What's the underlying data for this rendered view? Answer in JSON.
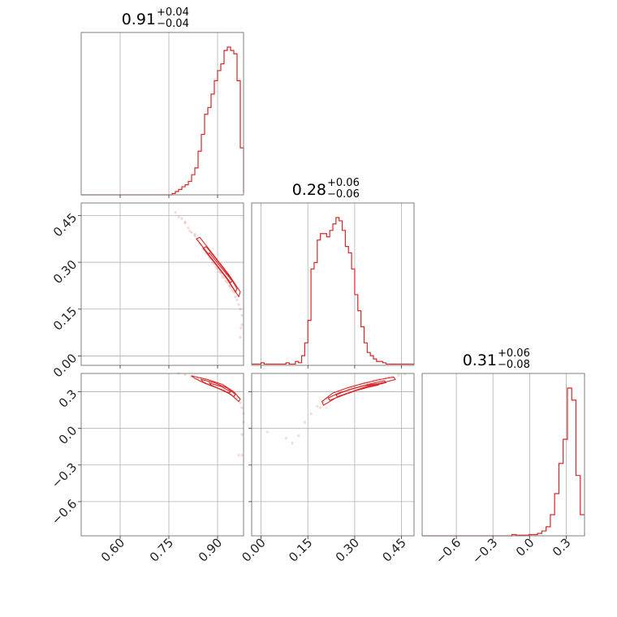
{
  "chart_data": {
    "type": "corner",
    "color": "#d62728",
    "parameters": [
      {
        "id": "p0",
        "title_value": "0.91",
        "title_upper": "+0.04",
        "title_lower": "−0.04",
        "range": [
          0.48,
          0.98
        ],
        "ticks": [
          0.6,
          0.75,
          0.9
        ],
        "tick_labels": [
          "0.60",
          "0.75",
          "0.90"
        ],
        "hist_edges_start": 0.48,
        "hist_bin_width": 0.01,
        "hist_counts": [
          0,
          0,
          0,
          0,
          0,
          0,
          0,
          0,
          0,
          0,
          0,
          0,
          0,
          0,
          0,
          0,
          0,
          0,
          0,
          0,
          0,
          0,
          0,
          0,
          0,
          0,
          0,
          0,
          0.2,
          0.5,
          0.8,
          1.2,
          1.5,
          2.0,
          3.0,
          4.0,
          6.5,
          9.0,
          12.0,
          13.0,
          15.0,
          17.0,
          18.5,
          19.5,
          21.5,
          22.0,
          21.5,
          21.0,
          17.0,
          7.0,
          0.4
        ]
      },
      {
        "id": "p1",
        "title_value": "0.28",
        "title_upper": "+0.06",
        "title_lower": "−0.06",
        "range": [
          -0.03,
          0.49
        ],
        "ticks": [
          0.0,
          0.15,
          0.3,
          0.45
        ],
        "tick_labels": [
          "0.00",
          "0.15",
          "0.30",
          "0.45"
        ],
        "hist_edges_start": -0.03,
        "hist_bin_width": 0.01,
        "hist_counts": [
          0.2,
          0.2,
          0.2,
          0.4,
          0.2,
          0.2,
          0.2,
          0.2,
          0.2,
          0.2,
          0.2,
          0.4,
          0.2,
          0.2,
          0.6,
          0.4,
          1.5,
          3.5,
          7.0,
          15.0,
          16.0,
          19.5,
          20.5,
          20.5,
          20.0,
          21.0,
          22.0,
          23.0,
          22.5,
          21.0,
          18.5,
          17.5,
          15.0,
          11.0,
          8.5,
          6.0,
          3.5,
          2.0,
          1.5,
          1.0,
          0.6,
          0.6,
          0.4,
          0.2,
          0.2,
          0.2,
          0.2,
          0.2,
          0.2,
          0.2,
          0.2,
          0.2
        ]
      },
      {
        "id": "p2",
        "title_value": "0.31",
        "title_upper": "+0.06",
        "title_lower": "−0.08",
        "range": [
          -0.88,
          0.45
        ],
        "ticks": [
          -0.6,
          -0.3,
          0.0,
          0.3
        ],
        "tick_labels": [
          "−0.6",
          "−0.3",
          "0.0",
          "0.3"
        ],
        "hist_edges_start": -0.88,
        "hist_bin_width": 0.035,
        "hist_counts": [
          0,
          0,
          0,
          0,
          0,
          0,
          0,
          0,
          0,
          0,
          0,
          0,
          0,
          0,
          0,
          0,
          0,
          0,
          0,
          0,
          0,
          0.2,
          0.1,
          0.1,
          0.1,
          0.2,
          0.2,
          0.4,
          0.8,
          1.5,
          3.5,
          7.0,
          12.0,
          16.0,
          24.5,
          22.5,
          10.0,
          3.5
        ]
      }
    ],
    "pairs": [
      {
        "x_param": 0,
        "y_param": 1,
        "samples": [
          [
            0.77,
            0.46
          ],
          [
            0.78,
            0.445
          ],
          [
            0.79,
            0.44
          ],
          [
            0.8,
            0.425
          ],
          [
            0.81,
            0.41
          ],
          [
            0.815,
            0.4
          ],
          [
            0.82,
            0.395
          ],
          [
            0.83,
            0.385
          ],
          [
            0.84,
            0.37
          ],
          [
            0.845,
            0.36
          ],
          [
            0.85,
            0.355
          ],
          [
            0.86,
            0.34
          ],
          [
            0.865,
            0.33
          ],
          [
            0.87,
            0.325
          ],
          [
            0.875,
            0.315
          ],
          [
            0.88,
            0.31
          ],
          [
            0.885,
            0.3
          ],
          [
            0.89,
            0.295
          ],
          [
            0.895,
            0.285
          ],
          [
            0.9,
            0.28
          ],
          [
            0.905,
            0.27
          ],
          [
            0.91,
            0.265
          ],
          [
            0.915,
            0.255
          ],
          [
            0.92,
            0.25
          ],
          [
            0.925,
            0.24
          ],
          [
            0.93,
            0.235
          ],
          [
            0.935,
            0.225
          ],
          [
            0.94,
            0.22
          ],
          [
            0.945,
            0.21
          ],
          [
            0.95,
            0.205
          ],
          [
            0.955,
            0.19
          ],
          [
            0.96,
            0.18
          ],
          [
            0.965,
            0.165
          ],
          [
            0.97,
            0.15
          ],
          [
            0.975,
            0.13
          ],
          [
            0.975,
            0.1
          ],
          [
            0.97,
            0.06
          ],
          [
            0.972,
            0.09
          ],
          [
            0.8,
            0.43
          ],
          [
            0.83,
            0.39
          ],
          [
            0.87,
            0.33
          ],
          [
            0.91,
            0.27
          ],
          [
            0.94,
            0.225
          ]
        ],
        "contours": [
          [
            [
              0.835,
              0.375
            ],
            [
              0.88,
              0.315
            ],
            [
              0.925,
              0.255
            ],
            [
              0.965,
              0.19
            ],
            [
              0.97,
              0.205
            ],
            [
              0.935,
              0.26
            ],
            [
              0.89,
              0.32
            ],
            [
              0.845,
              0.38
            ]
          ],
          [
            [
              0.855,
              0.345
            ],
            [
              0.89,
              0.3
            ],
            [
              0.93,
              0.245
            ],
            [
              0.955,
              0.205
            ],
            [
              0.96,
              0.215
            ],
            [
              0.94,
              0.25
            ],
            [
              0.9,
              0.305
            ],
            [
              0.865,
              0.35
            ]
          ],
          [
            [
              0.87,
              0.325
            ],
            [
              0.905,
              0.28
            ],
            [
              0.94,
              0.235
            ],
            [
              0.945,
              0.24
            ],
            [
              0.91,
              0.285
            ],
            [
              0.875,
              0.33
            ]
          ]
        ]
      },
      {
        "x_param": 0,
        "y_param": 2,
        "samples": [
          [
            0.78,
            0.45
          ],
          [
            0.8,
            0.44
          ],
          [
            0.82,
            0.425
          ],
          [
            0.84,
            0.41
          ],
          [
            0.86,
            0.395
          ],
          [
            0.875,
            0.38
          ],
          [
            0.89,
            0.365
          ],
          [
            0.905,
            0.35
          ],
          [
            0.92,
            0.33
          ],
          [
            0.935,
            0.31
          ],
          [
            0.95,
            0.28
          ],
          [
            0.96,
            0.25
          ],
          [
            0.97,
            0.21
          ],
          [
            0.975,
            0.17
          ],
          [
            0.98,
            0.12
          ],
          [
            0.98,
            0.05
          ],
          [
            0.975,
            -0.05
          ],
          [
            0.975,
            -0.22
          ],
          [
            0.965,
            -0.22
          ],
          [
            0.82,
            0.43
          ],
          [
            0.85,
            0.4
          ],
          [
            0.88,
            0.375
          ],
          [
            0.91,
            0.345
          ],
          [
            0.94,
            0.3
          ]
        ],
        "contours": [
          [
            [
              0.82,
              0.43
            ],
            [
              0.87,
              0.4
            ],
            [
              0.915,
              0.36
            ],
            [
              0.95,
              0.3
            ],
            [
              0.97,
              0.24
            ],
            [
              0.965,
              0.22
            ],
            [
              0.94,
              0.28
            ],
            [
              0.9,
              0.33
            ],
            [
              0.86,
              0.37
            ],
            [
              0.83,
              0.41
            ]
          ],
          [
            [
              0.85,
              0.4
            ],
            [
              0.89,
              0.375
            ],
            [
              0.93,
              0.33
            ],
            [
              0.955,
              0.28
            ],
            [
              0.95,
              0.26
            ],
            [
              0.92,
              0.31
            ],
            [
              0.88,
              0.35
            ],
            [
              0.855,
              0.38
            ]
          ],
          [
            [
              0.875,
              0.37
            ],
            [
              0.91,
              0.345
            ],
            [
              0.94,
              0.3
            ],
            [
              0.935,
              0.29
            ],
            [
              0.9,
              0.33
            ],
            [
              0.88,
              0.355
            ]
          ]
        ]
      },
      {
        "x_param": 1,
        "y_param": 2,
        "samples": [
          [
            0.02,
            -0.03
          ],
          [
            0.08,
            -0.08
          ],
          [
            0.1,
            -0.12
          ],
          [
            0.12,
            -0.06
          ],
          [
            0.14,
            0.05
          ],
          [
            0.16,
            0.12
          ],
          [
            0.18,
            0.18
          ],
          [
            0.2,
            0.22
          ],
          [
            0.22,
            0.25
          ],
          [
            0.24,
            0.28
          ],
          [
            0.26,
            0.3
          ],
          [
            0.28,
            0.32
          ],
          [
            0.3,
            0.34
          ],
          [
            0.32,
            0.36
          ],
          [
            0.34,
            0.375
          ],
          [
            0.36,
            0.39
          ],
          [
            0.38,
            0.4
          ],
          [
            0.4,
            0.415
          ],
          [
            0.42,
            0.425
          ],
          [
            0.44,
            0.435
          ],
          [
            0.46,
            0.445
          ],
          [
            0.48,
            0.455
          ],
          [
            0.19,
            0.17
          ],
          [
            0.21,
            0.24
          ],
          [
            0.25,
            0.29
          ],
          [
            0.29,
            0.33
          ],
          [
            0.33,
            0.37
          ],
          [
            0.37,
            0.395
          ],
          [
            0.41,
            0.42
          ]
        ],
        "contours": [
          [
            [
              0.2,
              0.19
            ],
            [
              0.24,
              0.25
            ],
            [
              0.29,
              0.3
            ],
            [
              0.34,
              0.345
            ],
            [
              0.39,
              0.375
            ],
            [
              0.43,
              0.4
            ],
            [
              0.425,
              0.42
            ],
            [
              0.38,
              0.4
            ],
            [
              0.33,
              0.37
            ],
            [
              0.28,
              0.335
            ],
            [
              0.23,
              0.29
            ],
            [
              0.195,
              0.22
            ]
          ],
          [
            [
              0.22,
              0.23
            ],
            [
              0.26,
              0.27
            ],
            [
              0.31,
              0.315
            ],
            [
              0.36,
              0.35
            ],
            [
              0.4,
              0.375
            ],
            [
              0.395,
              0.39
            ],
            [
              0.35,
              0.365
            ],
            [
              0.3,
              0.33
            ],
            [
              0.25,
              0.29
            ],
            [
              0.215,
              0.25
            ]
          ],
          [
            [
              0.245,
              0.26
            ],
            [
              0.29,
              0.3
            ],
            [
              0.34,
              0.335
            ],
            [
              0.375,
              0.355
            ],
            [
              0.37,
              0.365
            ],
            [
              0.33,
              0.35
            ],
            [
              0.28,
              0.315
            ],
            [
              0.24,
              0.275
            ]
          ]
        ]
      }
    ]
  }
}
